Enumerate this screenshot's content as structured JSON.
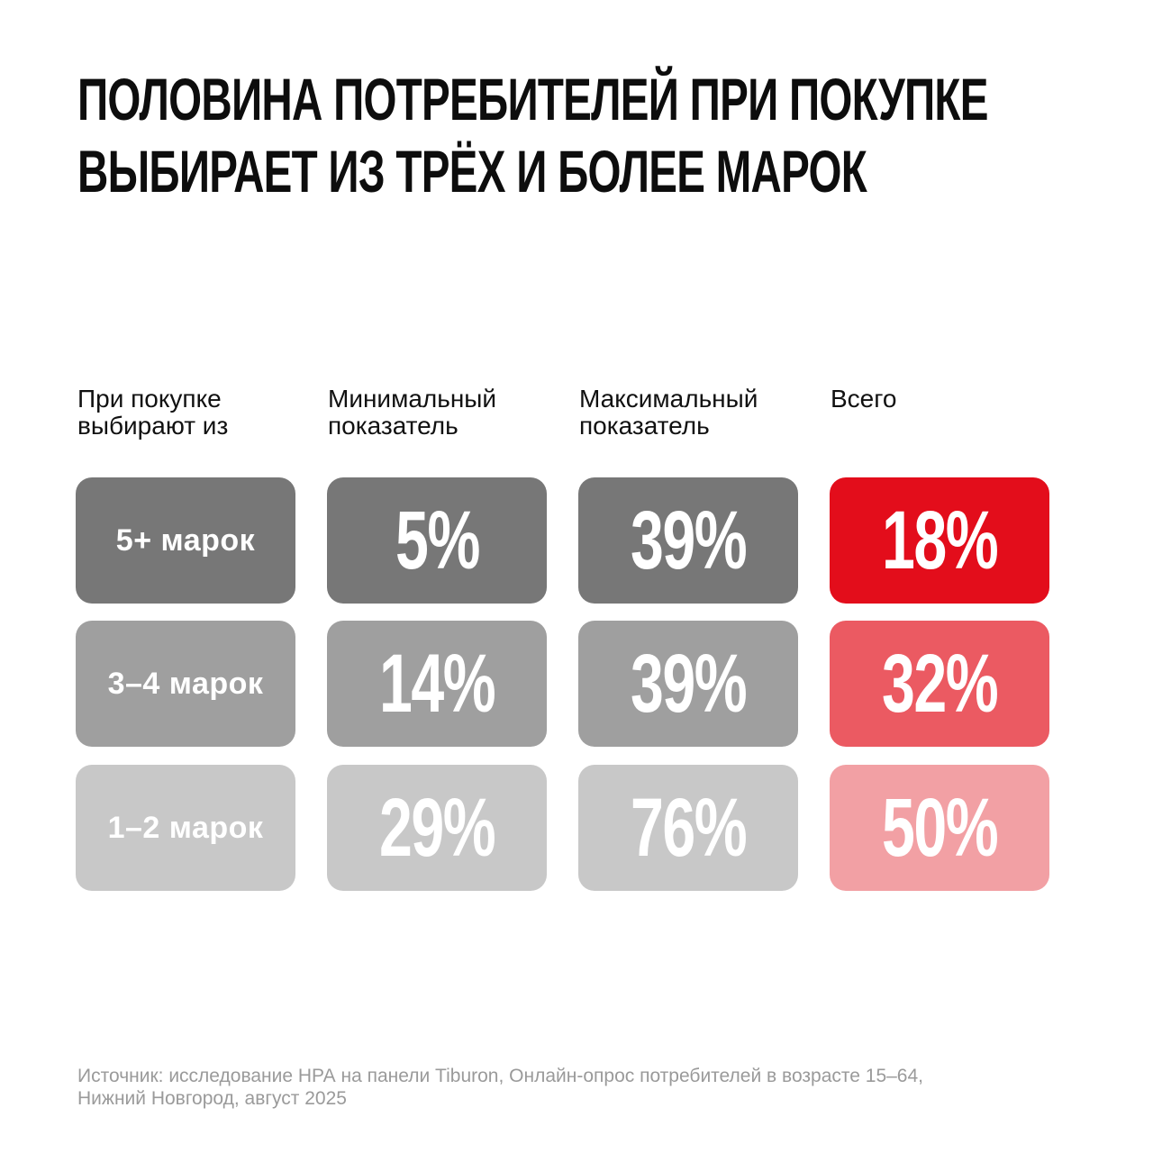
{
  "title": {
    "line1": "ПОЛОВИНА ПОТРЕБИТЕЛЕЙ ПРИ ПОКУПКЕ",
    "line2": "ВЫБИРАЕТ ИЗ ТРЁХ И БОЛЕЕ МАРОК"
  },
  "headers": {
    "category": [
      "При покупке",
      "выбирают из"
    ],
    "min": [
      "Минимальный",
      "показатель"
    ],
    "max": [
      "Максимальный",
      "показатель"
    ],
    "total": [
      "Всего"
    ]
  },
  "chart_data": {
    "type": "table",
    "columns": [
      "При покупке выбирают из",
      "Минимальный показатель",
      "Максимальный показатель",
      "Всего"
    ],
    "rows": [
      {
        "label": "5+ марок",
        "min": "5%",
        "max": "39%",
        "total": "18%"
      },
      {
        "label": "3–4 марок",
        "min": "14%",
        "max": "39%",
        "total": "32%"
      },
      {
        "label": "1–2 марок",
        "min": "29%",
        "max": "76%",
        "total": "50%"
      }
    ],
    "values_percent": {
      "min": [
        5,
        14,
        29
      ],
      "max": [
        39,
        39,
        76
      ],
      "total": [
        18,
        32,
        50
      ]
    }
  },
  "colors": {
    "gray_dark": "#777777",
    "gray_mid": "#9f9f9f",
    "gray_light": "#c8c8c8",
    "red_dark": "#e30d1b",
    "red_mid": "#eb5a62",
    "red_light": "#f2a0a4"
  },
  "footer": {
    "line1": "Источник: исследование НРА на панели Tiburon, Онлайн-опрос потребителей в возрасте 15–64,",
    "line2": "Нижний Новгород, август 2025"
  }
}
